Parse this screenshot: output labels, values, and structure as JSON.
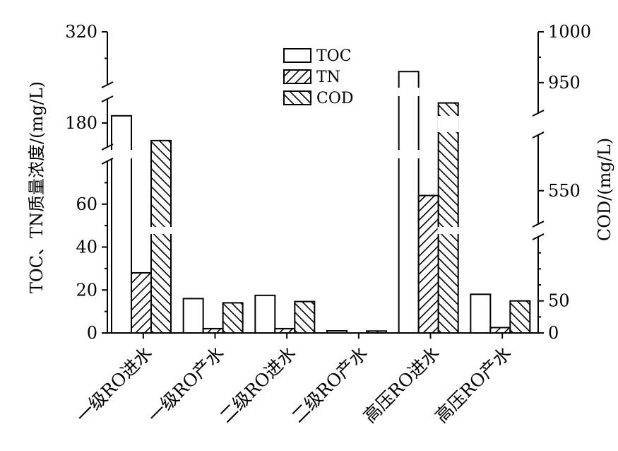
{
  "chart_data": {
    "type": "bar",
    "categories": [
      "一级RO进水",
      "一级RO产水",
      "二级RO进水",
      "二级RO产水",
      "高压RO进水",
      "高压RO产水"
    ],
    "series": [
      {
        "name": "TOC",
        "axis": "left",
        "pattern": "none",
        "values": [
          183,
          16,
          17.5,
          1,
          290,
          18
        ]
      },
      {
        "name": "TN",
        "axis": "left",
        "pattern": "hatch-forward",
        "values": [
          28,
          2,
          2,
          0,
          64,
          2.5
        ]
      },
      {
        "name": "COD",
        "axis": "right",
        "pattern": "hatch-back",
        "values": [
          595,
          47,
          49,
          3,
          930,
          50
        ]
      }
    ],
    "left_axis": {
      "label": "TOC、TN质量浓度/(mg/L)",
      "ticks": [
        "0",
        "20",
        "40",
        "60",
        "180",
        "320"
      ],
      "broken": true
    },
    "right_axis": {
      "label": "COD/(mg/L)",
      "ticks": [
        "0",
        "50",
        "550",
        "950",
        "1000"
      ],
      "broken": true
    },
    "legend": {
      "position": "top-center",
      "entries": [
        "TOC",
        "TN",
        "COD"
      ]
    },
    "grid": false
  }
}
